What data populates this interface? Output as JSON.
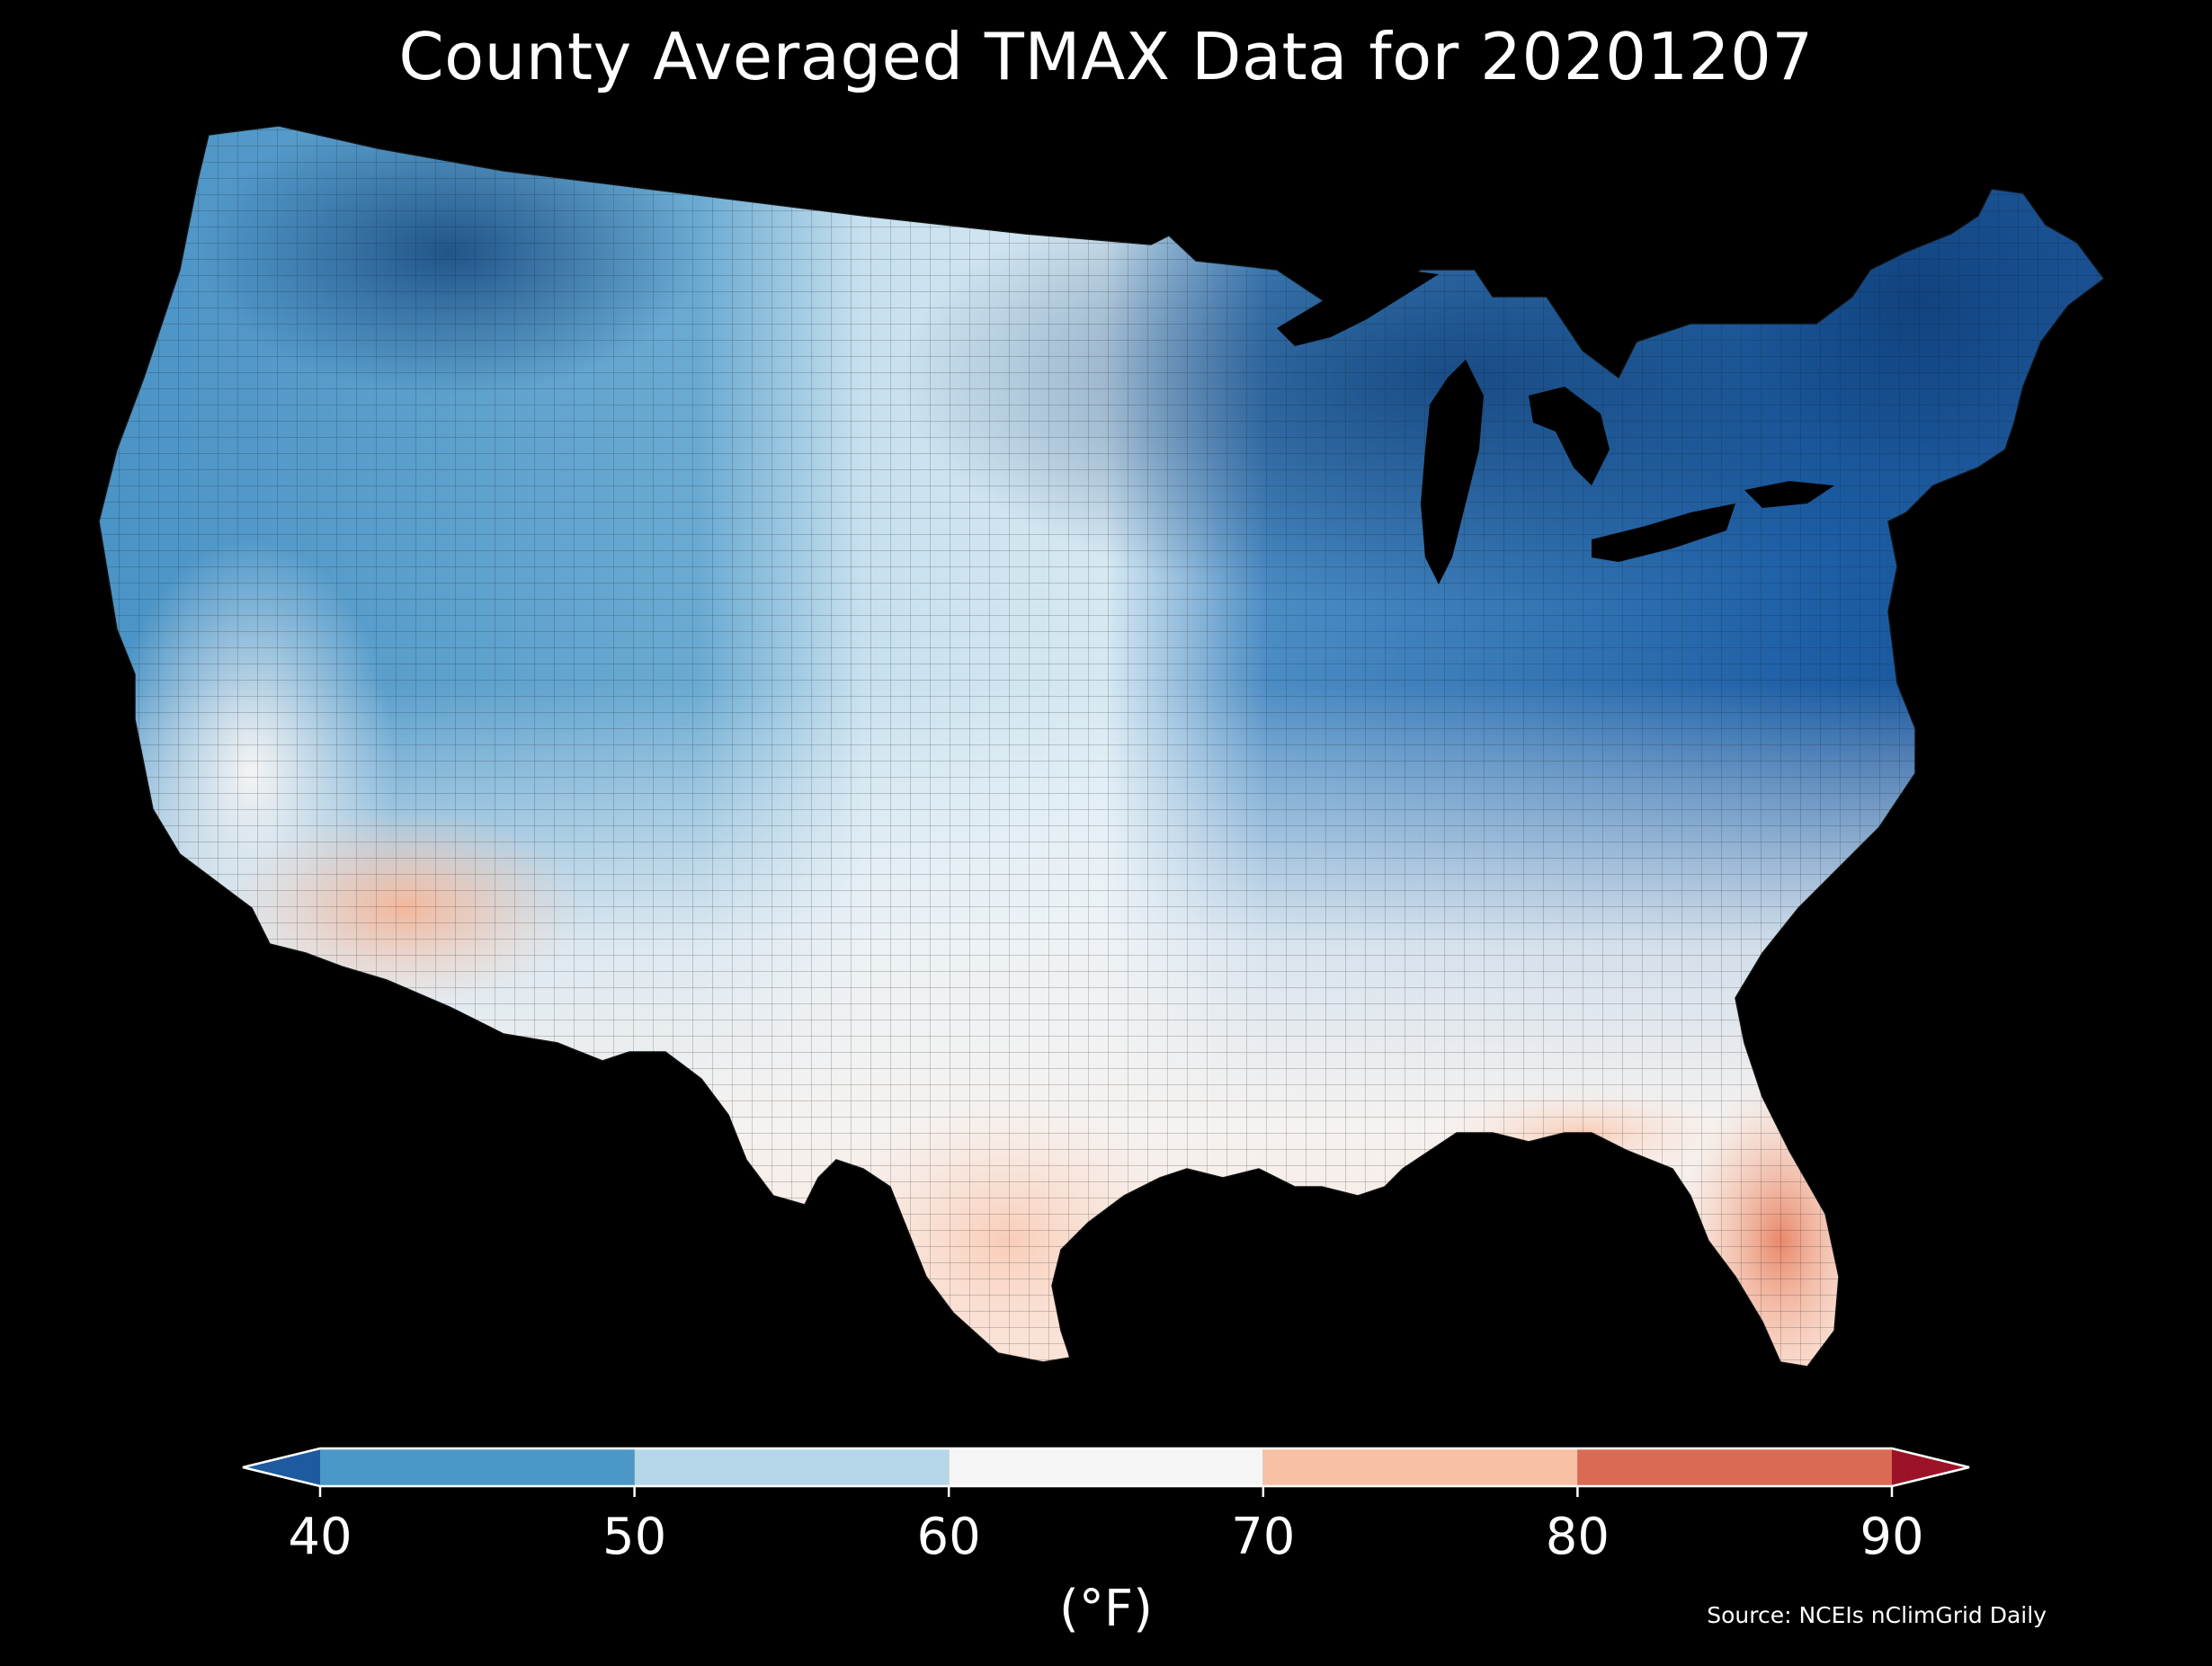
{
  "title": "County Averaged TMAX Data for 20201207",
  "colorbar": {
    "unit_label": "(°F)",
    "ticks": [
      "40",
      "50",
      "60",
      "70",
      "80",
      "90"
    ],
    "bins": [
      {
        "range": [
          null,
          40
        ],
        "color": "#1e5aa0"
      },
      {
        "range": [
          40,
          50
        ],
        "color": "#4b98c8"
      },
      {
        "range": [
          50,
          60
        ],
        "color": "#b6d7e9"
      },
      {
        "range": [
          60,
          70
        ],
        "color": "#f5f5f5"
      },
      {
        "range": [
          70,
          80
        ],
        "color": "#f8c0a4"
      },
      {
        "range": [
          80,
          90
        ],
        "color": "#db6a55"
      },
      {
        "range": [
          90,
          null
        ],
        "color": "#9c1328"
      }
    ]
  },
  "source": "Source: NCEIs nClimGrid Daily",
  "map": {
    "region": "Contiguous United States",
    "background_color": "#000000",
    "county_border_color": "#1a1a1a"
  }
}
